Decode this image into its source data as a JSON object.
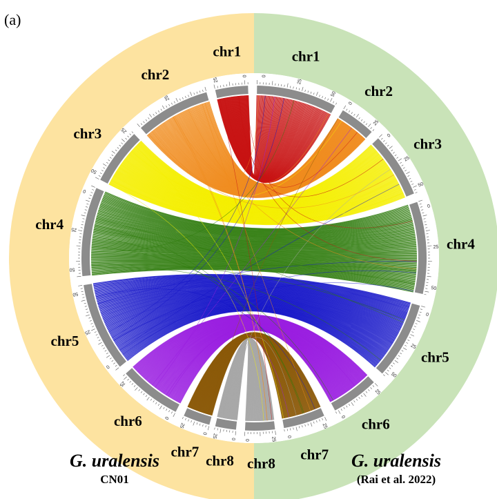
{
  "panel_label": "(a)",
  "colors": {
    "left_band": "#fde3a0",
    "right_band": "#c9e3b8",
    "ideogram": "#8c8c8c",
    "chr1": "#c81414",
    "chr2": "#f08c1e",
    "chr3": "#f5ef00",
    "chr4": "#2d7a0a",
    "chr5": "#1414c8",
    "chr6": "#9a1ee0",
    "chr7": "#8c5a0a",
    "chr8": "#a8a8a8"
  },
  "left_genome": {
    "name": "G. uralensis",
    "sub": "CN01",
    "chromosomes": [
      {
        "label": "chr1",
        "ticks": [
          "25",
          "0"
        ]
      },
      {
        "label": "chr2",
        "ticks": [
          "25"
        ]
      },
      {
        "label": "chr3",
        "ticks": [
          "50",
          "25"
        ]
      },
      {
        "label": "chr4",
        "ticks": [
          "50",
          "25",
          "0"
        ]
      },
      {
        "label": "chr5",
        "ticks": [
          "0",
          "25",
          "50"
        ]
      },
      {
        "label": "chr6",
        "ticks": [
          "0",
          "25"
        ]
      },
      {
        "label": "chr7",
        "ticks": [
          "0",
          "25"
        ]
      },
      {
        "label": "chr8",
        "ticks": [
          "0",
          "25"
        ]
      }
    ]
  },
  "right_genome": {
    "name": "G. uralensis",
    "sub": "(Rai et al. 2022)",
    "chromosomes": [
      {
        "label": "chr1",
        "ticks": [
          "0",
          "25",
          "50"
        ]
      },
      {
        "label": "chr2",
        "ticks": [
          "0",
          "25"
        ]
      },
      {
        "label": "chr3",
        "ticks": [
          "0",
          "25",
          "50"
        ]
      },
      {
        "label": "chr4",
        "ticks": [
          "0",
          "25",
          "50"
        ]
      },
      {
        "label": "chr5",
        "ticks": [
          "0",
          "25",
          "50"
        ]
      },
      {
        "label": "chr6",
        "ticks": [
          "25",
          "0"
        ]
      },
      {
        "label": "chr7",
        "ticks": [
          "25",
          "0"
        ]
      },
      {
        "label": "chr8",
        "ticks": [
          "25",
          "0"
        ]
      }
    ]
  }
}
